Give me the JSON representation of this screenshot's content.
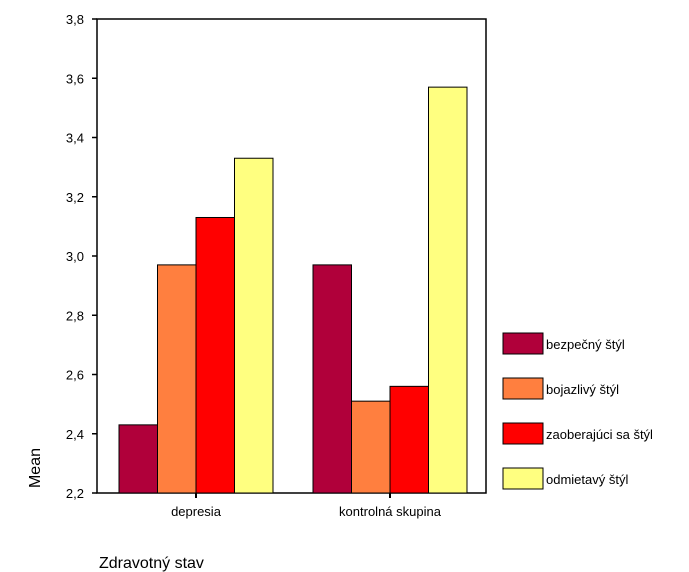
{
  "chart_data": {
    "type": "bar",
    "categories": [
      "depresia",
      "kontrolná skupina"
    ],
    "series": [
      {
        "name": "bezpečný štýl",
        "color": "#b0003a",
        "values": [
          2.43,
          2.97
        ]
      },
      {
        "name": "bojazlivý štýl",
        "color": "#ff7f3f",
        "values": [
          2.97,
          2.51
        ]
      },
      {
        "name": "zaoberajúci sa štýl",
        "color": "#ff0000",
        "values": [
          3.13,
          2.56
        ]
      },
      {
        "name": "odmietavý štýl",
        "color": "#ffff80",
        "values": [
          3.33,
          3.57
        ]
      }
    ],
    "xlabel": "Zdravotný stav",
    "ylabel": "Mean",
    "ylim": [
      2.2,
      3.8
    ],
    "yticks": [
      "2,2",
      "2,4",
      "2,6",
      "2,8",
      "3,0",
      "3,2",
      "3,4",
      "3,6",
      "3,8"
    ],
    "grid": false,
    "legend_position": "right"
  }
}
